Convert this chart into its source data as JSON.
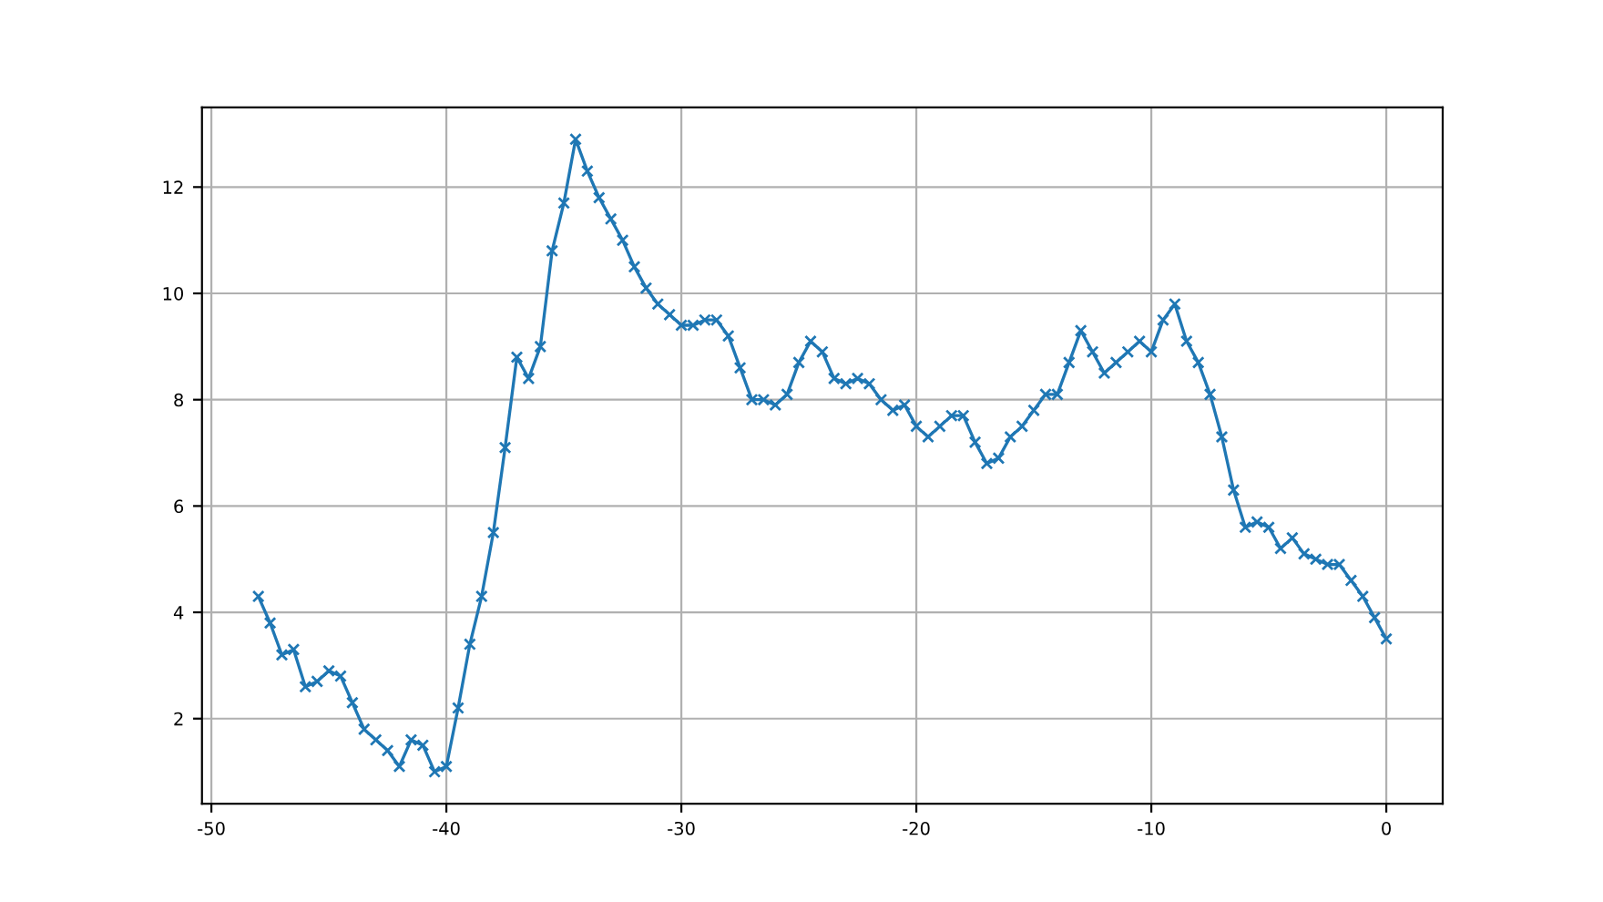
{
  "chart_data": {
    "type": "line",
    "marker": "cross",
    "line_style": "solid",
    "grid": true,
    "x": [
      -48,
      -47.5,
      -47,
      -46.5,
      -46,
      -45.5,
      -45,
      -44.5,
      -44,
      -43.5,
      -43,
      -42.5,
      -42,
      -41.5,
      -41,
      -40.5,
      -40,
      -39.5,
      -39,
      -38.5,
      -38,
      -37.5,
      -37,
      -36.5,
      -36,
      -35.5,
      -35,
      -34.5,
      -34,
      -33.5,
      -33,
      -32.5,
      -32,
      -31.5,
      -31,
      -30.5,
      -30,
      -29.5,
      -29,
      -28.5,
      -28,
      -27.5,
      -27,
      -26.5,
      -26,
      -25.5,
      -25,
      -24.5,
      -24,
      -23.5,
      -23,
      -22.5,
      -22,
      -21.5,
      -21,
      -20.5,
      -20,
      -19.5,
      -19,
      -18.5,
      -18,
      -17.5,
      -17,
      -16.5,
      -16,
      -15.5,
      -15,
      -14.5,
      -14,
      -13.5,
      -13,
      -12.5,
      -12,
      -11.5,
      -11,
      -10.5,
      -10,
      -9.5,
      -9,
      -8.5,
      -8,
      -7.5,
      -7,
      -6.5,
      -6,
      -5.5,
      -5,
      -4.5,
      -4,
      -3.5,
      -3,
      -2.5,
      -2,
      -1.5,
      -1,
      -0.5,
      0
    ],
    "series": [
      {
        "color": "#1f77b4",
        "values": [
          4.3,
          3.8,
          3.2,
          3.3,
          2.6,
          2.7,
          2.9,
          2.8,
          2.3,
          1.8,
          1.6,
          1.4,
          1.1,
          1.6,
          1.5,
          1.0,
          1.1,
          2.2,
          3.4,
          4.3,
          5.5,
          7.1,
          8.8,
          8.4,
          9.0,
          10.8,
          11.7,
          12.9,
          12.3,
          11.8,
          11.4,
          11.0,
          10.5,
          10.1,
          9.8,
          9.6,
          9.4,
          9.4,
          9.5,
          9.5,
          9.2,
          8.6,
          8.0,
          8.0,
          7.9,
          8.1,
          8.7,
          9.1,
          8.9,
          8.4,
          8.3,
          8.4,
          8.3,
          8.0,
          7.8,
          7.9,
          7.5,
          7.3,
          7.5,
          7.7,
          7.7,
          7.2,
          6.8,
          6.9,
          7.3,
          7.5,
          7.8,
          8.1,
          8.1,
          8.7,
          9.3,
          8.9,
          8.5,
          8.7,
          8.9,
          9.1,
          8.9,
          9.5,
          9.8,
          9.1,
          8.7,
          8.1,
          7.3,
          6.3,
          5.6,
          5.7,
          5.6,
          5.2,
          5.4,
          5.1,
          5.0,
          4.9,
          4.9,
          4.6,
          4.3,
          3.9,
          3.5
        ]
      }
    ],
    "xlim": [
      -50.4,
      2.4
    ],
    "xticks": [
      -50,
      -40,
      -30,
      -20,
      -10,
      0
    ],
    "ylim": [
      0.4,
      13.5
    ],
    "yticks": [
      2,
      4,
      6,
      8,
      10,
      12
    ]
  }
}
